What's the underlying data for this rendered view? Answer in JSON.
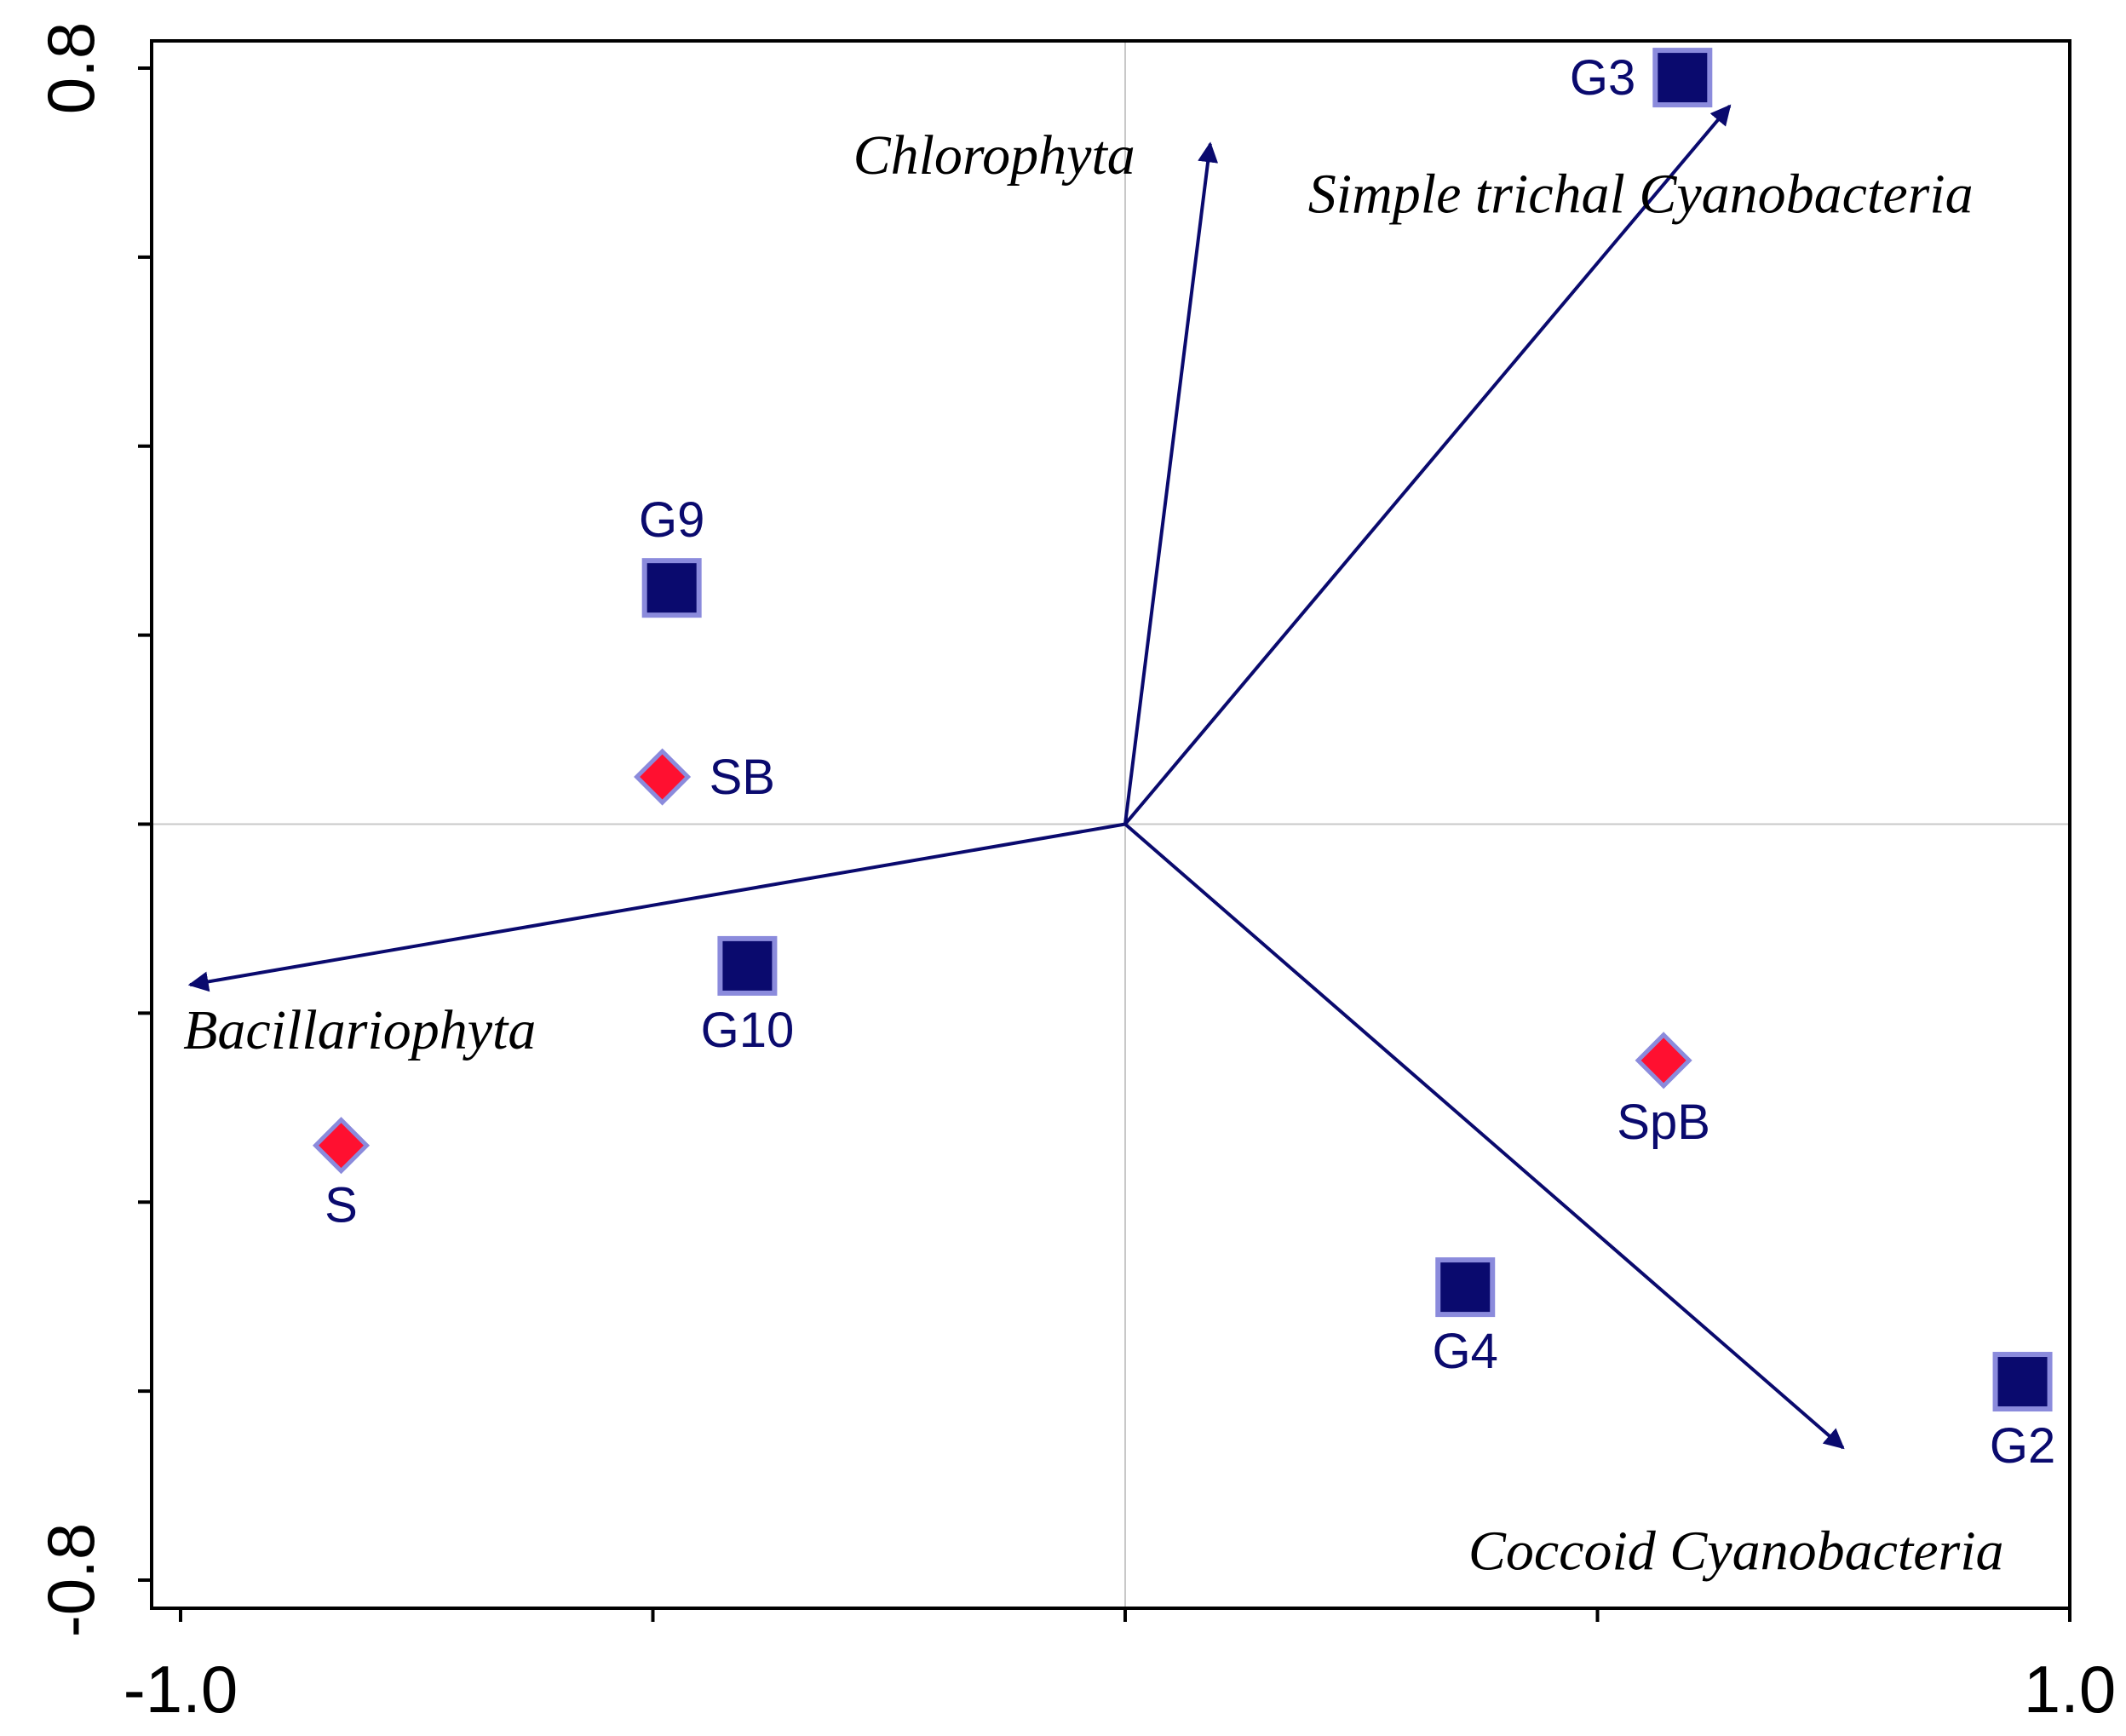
{
  "chart_data": {
    "type": "scatter",
    "subtype": "ordination-biplot",
    "title": "",
    "xlabel": "",
    "ylabel": "",
    "xlim": [
      -1.0,
      1.0
    ],
    "ylim": [
      -0.8,
      0.8
    ],
    "x_tick_labels": [
      {
        "value": -1.0,
        "label": "-1.0"
      },
      {
        "value": 1.0,
        "label": "1.0"
      }
    ],
    "y_tick_labels": [
      {
        "value": 0.8,
        "label": "0.8"
      },
      {
        "value": -0.8,
        "label": "-0.8"
      }
    ],
    "x_minor_ticks": [
      -1.0,
      -0.5,
      0.0,
      0.5,
      1.0
    ],
    "y_minor_ticks": [
      0.8,
      0.6,
      0.4,
      0.2,
      0.0,
      -0.2,
      -0.4,
      -0.6,
      -0.8
    ],
    "grid": false,
    "zero_lines": true,
    "colors": {
      "vector": "#0a0a6e",
      "square_fill": "#0a0a6e",
      "square_edge": "#8b8bdc",
      "diamond_fill": "#ff1030",
      "diamond_edge": "#8b8bdc",
      "zero_line": "#c8c8c8",
      "axis": "#000000"
    },
    "vectors": [
      {
        "name": "Chlorophyta",
        "x": 0.09,
        "y": 0.72
      },
      {
        "name": "Simple trichal Cyanobacteria",
        "x": 0.64,
        "y": 0.76
      },
      {
        "name": "Bacillariophyta",
        "x": -0.99,
        "y": -0.17
      },
      {
        "name": "Coccoid Cyanobacteria",
        "x": 0.76,
        "y": -0.66
      }
    ],
    "points": [
      {
        "label": "G3",
        "x": 0.59,
        "y": 0.79,
        "group": "sample",
        "marker": "square"
      },
      {
        "label": "G9",
        "x": -0.48,
        "y": 0.25,
        "group": "sample",
        "marker": "square"
      },
      {
        "label": "G10",
        "x": -0.4,
        "y": -0.15,
        "group": "sample",
        "marker": "square"
      },
      {
        "label": "G4",
        "x": 0.36,
        "y": -0.49,
        "group": "sample",
        "marker": "square"
      },
      {
        "label": "G2",
        "x": 0.95,
        "y": -0.59,
        "group": "sample",
        "marker": "square"
      },
      {
        "label": "SB",
        "x": -0.49,
        "y": 0.05,
        "group": "site",
        "marker": "diamond"
      },
      {
        "label": "S",
        "x": -0.83,
        "y": -0.34,
        "group": "site",
        "marker": "diamond"
      },
      {
        "label": "SpB",
        "x": 0.57,
        "y": -0.25,
        "group": "site",
        "marker": "diamond"
      }
    ]
  }
}
